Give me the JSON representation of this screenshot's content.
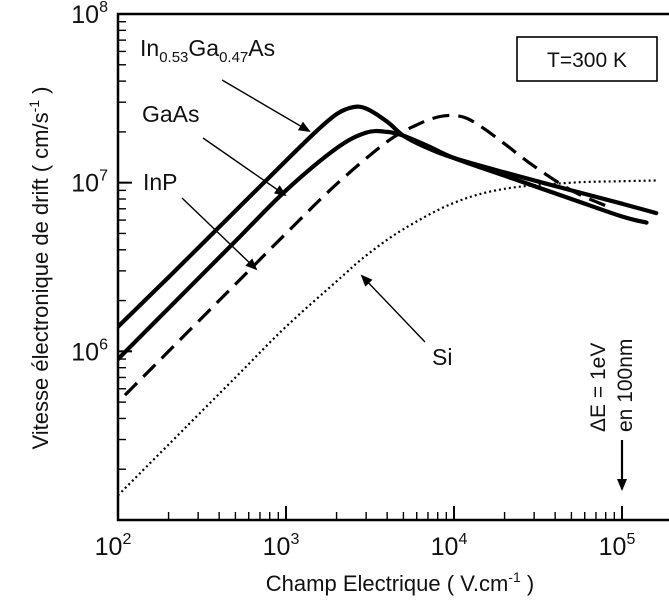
{
  "chart_data": {
    "type": "line",
    "title": "",
    "xlabel_main": "Champ Electrique ( V.cm",
    "xlabel_sup": "-1",
    "xlabel_end": " )",
    "ylabel_main": "Vitesse électronique de drift  ( cm/s",
    "ylabel_sup": "-1",
    "ylabel_end": " )",
    "x_scale": "log",
    "y_scale": "log",
    "xlim": [
      100,
      160000
    ],
    "ylim": [
      100000,
      100000000
    ],
    "x_ticks": [
      {
        "value": 100,
        "base": "10",
        "exp": "2"
      },
      {
        "value": 1000,
        "base": "10",
        "exp": "3"
      },
      {
        "value": 10000,
        "base": "10",
        "exp": "4"
      },
      {
        "value": 100000,
        "base": "10",
        "exp": "5"
      }
    ],
    "y_ticks": [
      {
        "value": 1000000,
        "base": "10",
        "exp": "6"
      },
      {
        "value": 10000000,
        "base": "10",
        "exp": "7"
      },
      {
        "value": 100000000,
        "base": "10",
        "exp": "8"
      }
    ],
    "grid": false,
    "legend": "none",
    "series": [
      {
        "name": "In0.53Ga0.47As",
        "label_parts": [
          {
            "t": "In",
            "sub": false
          },
          {
            "t": "0.53",
            "sub": true
          },
          {
            "t": "Ga",
            "sub": false
          },
          {
            "t": "0.47",
            "sub": true
          },
          {
            "t": "As",
            "sub": false
          }
        ],
        "style": "solid-thick",
        "x": [
          100,
          200,
          500,
          1000,
          1500,
          2000,
          2500,
          3000,
          4000,
          5000,
          7000,
          10000,
          20000,
          50000,
          100000,
          160000
        ],
        "y": [
          1400000,
          2750000,
          6800000,
          13500000,
          20000000,
          25500000,
          28000000,
          27500000,
          23000000,
          19000000,
          16000000,
          14000000,
          11500000,
          9000000,
          7500000,
          6600000
        ]
      },
      {
        "name": "GaAs",
        "label_parts": [
          {
            "t": "GaAs",
            "sub": false
          }
        ],
        "style": "solid-thick",
        "x": [
          100,
          200,
          500,
          1000,
          2000,
          3000,
          4000,
          5000,
          7000,
          10000,
          20000,
          50000,
          100000,
          140000
        ],
        "y": [
          900000,
          1800000,
          4500000,
          9000000,
          16000000,
          19800000,
          20000000,
          19000000,
          16500000,
          14000000,
          11000000,
          8000000,
          6300000,
          5800000
        ]
      },
      {
        "name": "InP",
        "label_parts": [
          {
            "t": "InP",
            "sub": false
          }
        ],
        "style": "dashed",
        "x": [
          110,
          200,
          500,
          1000,
          2000,
          4000,
          6000,
          8000,
          10000,
          12000,
          15000,
          20000,
          30000,
          50000,
          80000
        ],
        "y": [
          550000,
          1000000,
          2500000,
          5000000,
          9800000,
          17500000,
          22000000,
          24500000,
          25000000,
          24000000,
          21000000,
          17000000,
          12500000,
          9000000,
          7300000
        ]
      },
      {
        "name": "Si",
        "label_parts": [
          {
            "t": "Si",
            "sub": false
          }
        ],
        "style": "dotted",
        "x": [
          100,
          200,
          500,
          1000,
          2000,
          3000,
          5000,
          10000,
          20000,
          50000,
          100000,
          160000
        ],
        "y": [
          140000,
          280000,
          700000,
          1400000,
          2600000,
          3700000,
          5300000,
          7600000,
          9200000,
          10000000,
          10200000,
          10300000
        ]
      }
    ],
    "annotations": {
      "temperature": "T=300 K",
      "delta_line1": "ΔE = 1eV",
      "delta_line2": "en 100nm",
      "delta_arrow_x": 100000
    }
  }
}
